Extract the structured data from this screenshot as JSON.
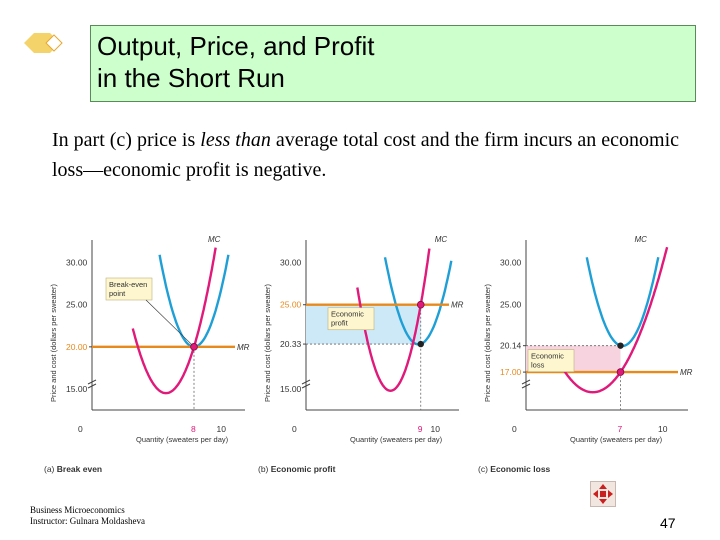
{
  "slide": {
    "title_line1": "Output, Price, and Profit",
    "title_line2": "in the Short Run",
    "body_part1": "In part (c) price is ",
    "body_italic": "less than",
    "body_part2": " average total cost and the firm incurs an economic loss—economic profit is negative.",
    "footer_line1": "Business Microeconomics",
    "footer_line2": "Instructor: Gulnara Moldasheva",
    "page_number": "47",
    "bullet_icon": "diamond-bullet-icon",
    "nav_icon": "four-arrows-navigation-icon"
  },
  "chart_data": [
    {
      "type": "line",
      "caption_letter": "(a)",
      "caption": "Break even",
      "xlabel": "Quantity (sweaters per day)",
      "ylabel": "Price and cost (dollars per sweater)",
      "x_ticks": [
        {
          "value": 0,
          "label": "0"
        },
        {
          "value": 8,
          "label": "8"
        },
        {
          "value": 10,
          "label": "10"
        }
      ],
      "y_ticks": [
        {
          "value": 15,
          "label": "15.00"
        },
        {
          "value": 20,
          "label": "20.00"
        },
        {
          "value": 25,
          "label": "25.00"
        },
        {
          "value": 30,
          "label": "30.00"
        }
      ],
      "price": 20.0,
      "quantity": 8,
      "atc_at_q": 20.0,
      "curves": {
        "mc": "MC",
        "atc": "ATC",
        "mr": "MR"
      },
      "annotation": "Break-even point",
      "region": "none",
      "colors": {
        "mc": "#e0197a",
        "atc": "#1e9fd6",
        "mr": "#e8891c",
        "point": "#e0197a"
      }
    },
    {
      "type": "line",
      "caption_letter": "(b)",
      "caption": "Economic profit",
      "xlabel": "Quantity (sweaters per day)",
      "ylabel": "Price and cost (dollars per sweater)",
      "x_ticks": [
        {
          "value": 0,
          "label": "0"
        },
        {
          "value": 9,
          "label": "9"
        },
        {
          "value": 10,
          "label": "10"
        }
      ],
      "y_ticks": [
        {
          "value": 15,
          "label": "15.00"
        },
        {
          "value": 20.33,
          "label": "20.33"
        },
        {
          "value": 25,
          "label": "25.00"
        },
        {
          "value": 30,
          "label": "30.00"
        }
      ],
      "price": 25.0,
      "quantity": 9,
      "atc_at_q": 20.33,
      "curves": {
        "mc": "MC",
        "atc": "ATC",
        "mr": "MR"
      },
      "annotation": "Economic profit",
      "region": "profit",
      "colors": {
        "mc": "#e0197a",
        "atc": "#1e9fd6",
        "mr": "#e8891c",
        "region": "#cde9f7",
        "point": "#e0197a"
      }
    },
    {
      "type": "line",
      "caption_letter": "(c)",
      "caption": "Economic loss",
      "xlabel": "Quantity (sweaters per day)",
      "ylabel": "Price and cost (dollars per sweater)",
      "x_ticks": [
        {
          "value": 0,
          "label": "0"
        },
        {
          "value": 7,
          "label": "7"
        },
        {
          "value": 10,
          "label": "10"
        }
      ],
      "y_ticks": [
        {
          "value": 17,
          "label": "17.00"
        },
        {
          "value": 20.14,
          "label": "20.14"
        },
        {
          "value": 25,
          "label": "25.00"
        },
        {
          "value": 30,
          "label": "30.00"
        }
      ],
      "price": 17.0,
      "quantity": 7,
      "atc_at_q": 20.14,
      "curves": {
        "mc": "MC",
        "atc": "ATC",
        "mr": "MR"
      },
      "annotation": "Economic loss",
      "region": "loss",
      "colors": {
        "mc": "#e0197a",
        "atc": "#1e9fd6",
        "mr": "#e8891c",
        "region": "#f6d3df",
        "point": "#e0197a"
      }
    }
  ]
}
